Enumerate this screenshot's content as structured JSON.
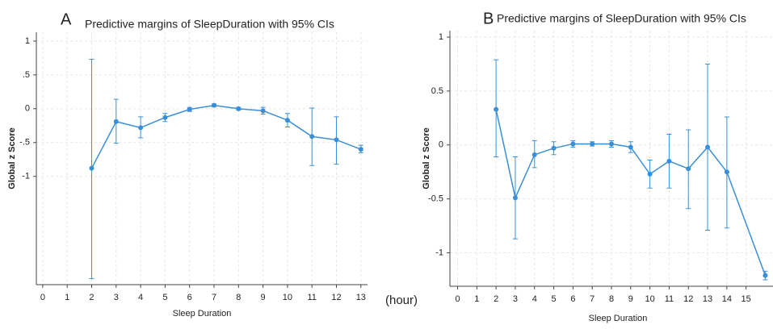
{
  "chart_data": [
    {
      "type": "line",
      "panel": "A",
      "title": "Predictive margins of SleepDuration with 95% CIs",
      "x_label": "Sleep Duration",
      "y_label": "Global z Score",
      "annotation": "(hour)",
      "color": "#3a8fd9",
      "grid": true,
      "x": [
        2,
        3,
        4,
        5,
        6,
        7,
        8,
        9,
        10,
        11,
        12,
        13
      ],
      "values": [
        -0.88,
        -0.19,
        -0.28,
        -0.13,
        -0.01,
        0.05,
        0.0,
        -0.03,
        -0.17,
        -0.41,
        -0.46,
        -0.6
      ],
      "ci_low": [
        -2.51,
        -0.51,
        -0.43,
        -0.19,
        -0.04,
        0.03,
        -0.02,
        -0.08,
        -0.27,
        -0.84,
        -0.82,
        -0.65
      ],
      "ci_high": [
        0.73,
        0.14,
        -0.12,
        -0.07,
        0.02,
        0.07,
        0.02,
        0.02,
        -0.07,
        0.01,
        -0.12,
        -0.54
      ],
      "xlim": [
        -0.26,
        13.27
      ],
      "ylim": [
        -2.6,
        1.13
      ],
      "xticks": [
        0,
        1,
        2,
        3,
        4,
        5,
        6,
        7,
        8,
        9,
        10,
        11,
        12,
        13
      ],
      "yticks": [
        1,
        {
          "value": 0.5,
          "label": ".5"
        },
        0,
        {
          "value": -0.5,
          "label": "-.5"
        },
        -1
      ]
    },
    {
      "type": "line",
      "panel": "B",
      "title": "Predictive margins of SleepDuration with 95% CIs",
      "x_label": "Sleep Duration",
      "y_label": "Global z Score",
      "color": "#3a8fd9",
      "grid": true,
      "x": [
        2,
        3,
        4,
        5,
        6,
        7,
        8,
        9,
        10,
        11,
        12,
        13,
        14,
        16
      ],
      "values": [
        0.33,
        -0.49,
        -0.09,
        -0.03,
        0.01,
        0.01,
        0.01,
        -0.02,
        -0.27,
        -0.15,
        -0.22,
        -0.02,
        -0.25,
        -1.21
      ],
      "ci_low": [
        -0.11,
        -0.87,
        -0.21,
        -0.09,
        -0.02,
        -0.01,
        -0.02,
        -0.07,
        -0.4,
        -0.4,
        -0.59,
        -0.79,
        -0.77,
        -1.25
      ],
      "ci_high": [
        0.79,
        -0.11,
        0.04,
        0.03,
        0.04,
        0.03,
        0.04,
        0.03,
        -0.14,
        0.1,
        0.14,
        0.75,
        0.26,
        -1.17
      ],
      "xlim": [
        -0.4,
        16.4
      ],
      "ylim": [
        -1.31,
        1.06
      ],
      "xticks": [
        0,
        1,
        2,
        3,
        4,
        5,
        6,
        7,
        8,
        9,
        10,
        11,
        12,
        13,
        14,
        15
      ],
      "yticks": [
        1,
        0.5,
        0,
        -0.5,
        -1
      ]
    }
  ]
}
